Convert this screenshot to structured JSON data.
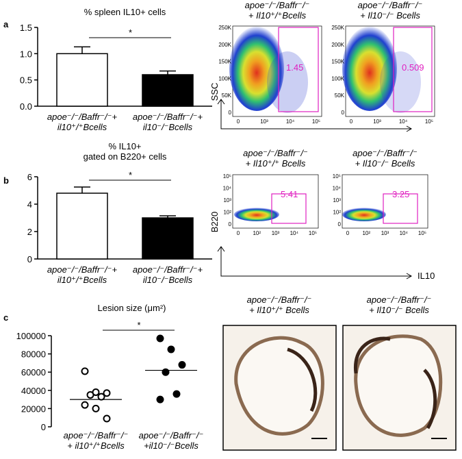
{
  "panel_labels": [
    "a",
    "b",
    "c"
  ],
  "chart_data": [
    {
      "type": "bar",
      "title": "% spleen IL10+ cells",
      "categories": [
        "apoe⁻/⁻/Baffr⁻/⁻+\nil10⁺/⁺Bcells",
        "apoe⁻/⁻/Baffr⁻/⁻+\nil10⁻/⁻Bcells"
      ],
      "values": [
        1.0,
        0.6
      ],
      "errors": [
        0.13,
        0.07
      ],
      "colors": [
        "#ffffff",
        "#000000"
      ],
      "annotation": "*",
      "ylim": [
        0,
        1.5
      ],
      "yticks": [
        {
          "value": 0,
          "label": "0.0"
        },
        0.5,
        {
          "value": 1,
          "label": "1.0"
        },
        1.5
      ]
    },
    {
      "type": "bar",
      "title": "% IL10+\ngated on B220+ cells",
      "categories": [
        "apoe⁻/⁻/Baffr⁻/⁻+\nil10⁺/⁺Bcells",
        "apoe⁻/⁻/Baffr⁻/⁻+\nil10⁻/⁻Bcells"
      ],
      "values": [
        4.8,
        3.0
      ],
      "errors": [
        0.45,
        0.15
      ],
      "colors": [
        "#ffffff",
        "#000000"
      ],
      "annotation": "*",
      "ylim": [
        0,
        6
      ],
      "yticks": [
        0,
        2,
        4,
        6
      ]
    },
    {
      "type": "scatter",
      "title": "Lesion size (μm²)",
      "categories": [
        "apoe⁻/⁻/Baffr⁻/⁻\n+ il10⁺/⁺Bcells",
        "apoe⁻/⁻/Baffr⁻/⁻\n+il10⁻/⁻Bcells"
      ],
      "series": [
        {
          "color": "#000000",
          "marker": "open",
          "values": [
            61000,
            38000,
            37000,
            35000,
            33000,
            24000,
            20000,
            9000
          ],
          "mean": 30000
        },
        {
          "color": "#000000",
          "marker": "filled",
          "values": [
            97000,
            85000,
            68000,
            60000,
            36000,
            30000
          ],
          "mean": 62000
        }
      ],
      "annotation": "*",
      "ylim": [
        0,
        100000
      ],
      "yticks": [
        0,
        20000,
        40000,
        60000,
        80000,
        100000
      ]
    }
  ],
  "flow_a": {
    "headings": [
      "apoe⁻/⁻/Baffr⁻/⁻\n+ Il10⁺/⁺Bcells",
      "apoe⁻/⁻/Baffr⁻/⁻\n+ Il10⁻/⁻ Bcells"
    ],
    "gates": [
      "1.45",
      "0.509"
    ],
    "y_label": "SSC",
    "y_ticks": [
      "250K",
      "200K",
      "150K",
      "100K",
      "50K",
      "0"
    ],
    "x_ticks": [
      "0",
      "10³",
      "10⁴",
      "10⁵"
    ]
  },
  "flow_b": {
    "headings": [
      "apoe⁻/⁻/Baffr⁻/⁻\n+ Il10⁺/⁺ Bcells",
      "apoe⁻/⁻/Baffr⁻/⁻\n+ Il10⁻/⁻ Bcells"
    ],
    "gates": [
      "5.41",
      "3.25"
    ],
    "y_label": "B220",
    "x_label": "IL10",
    "y_ticks": [
      "10⁵",
      "10⁴",
      "10³",
      "10²",
      "0"
    ],
    "x_ticks": [
      "0",
      "10²",
      "10³",
      "10⁴",
      "10⁵"
    ]
  },
  "histology": {
    "headings": [
      "apoe⁻/⁻/Baffr⁻/⁻\n+ Il10⁺/⁺ Bcells",
      "apoe⁻/⁻/Baffr⁻/⁻\n+ Il10⁻/⁻ Bcells"
    ]
  }
}
